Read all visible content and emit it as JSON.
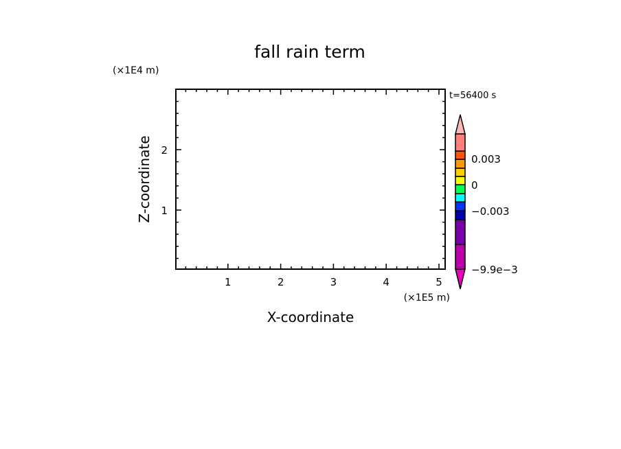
{
  "chart_data": {
    "type": "heatmap",
    "title": "fall rain term",
    "xlabel": "X-coordinate",
    "ylabel": "Z-coordinate",
    "x_unit": "(×1E5 m)",
    "y_unit": "(×1E4 m)",
    "time_label": "t=56400 s",
    "xlim": [
      0,
      5.1
    ],
    "ylim": [
      0,
      3
    ],
    "x_ticks": [
      "1",
      "2",
      "3",
      "4",
      "5"
    ],
    "y_ticks": [
      "1",
      "2"
    ],
    "x_minor_step": 0.2,
    "y_minor_step": 0.2,
    "field_values": [],
    "colorbar": {
      "colors": [
        "#ee00bb",
        "#bb00aa",
        "#7700aa",
        "#0000aa",
        "#0033ff",
        "#00ffff",
        "#00ff55",
        "#ffff00",
        "#ffcc00",
        "#ff9900",
        "#ff5500",
        "#ff7f7f",
        "#ffb6b6"
      ],
      "labels": [
        "0.003",
        "0",
        "-0.003",
        "-9.9e-3"
      ]
    }
  }
}
